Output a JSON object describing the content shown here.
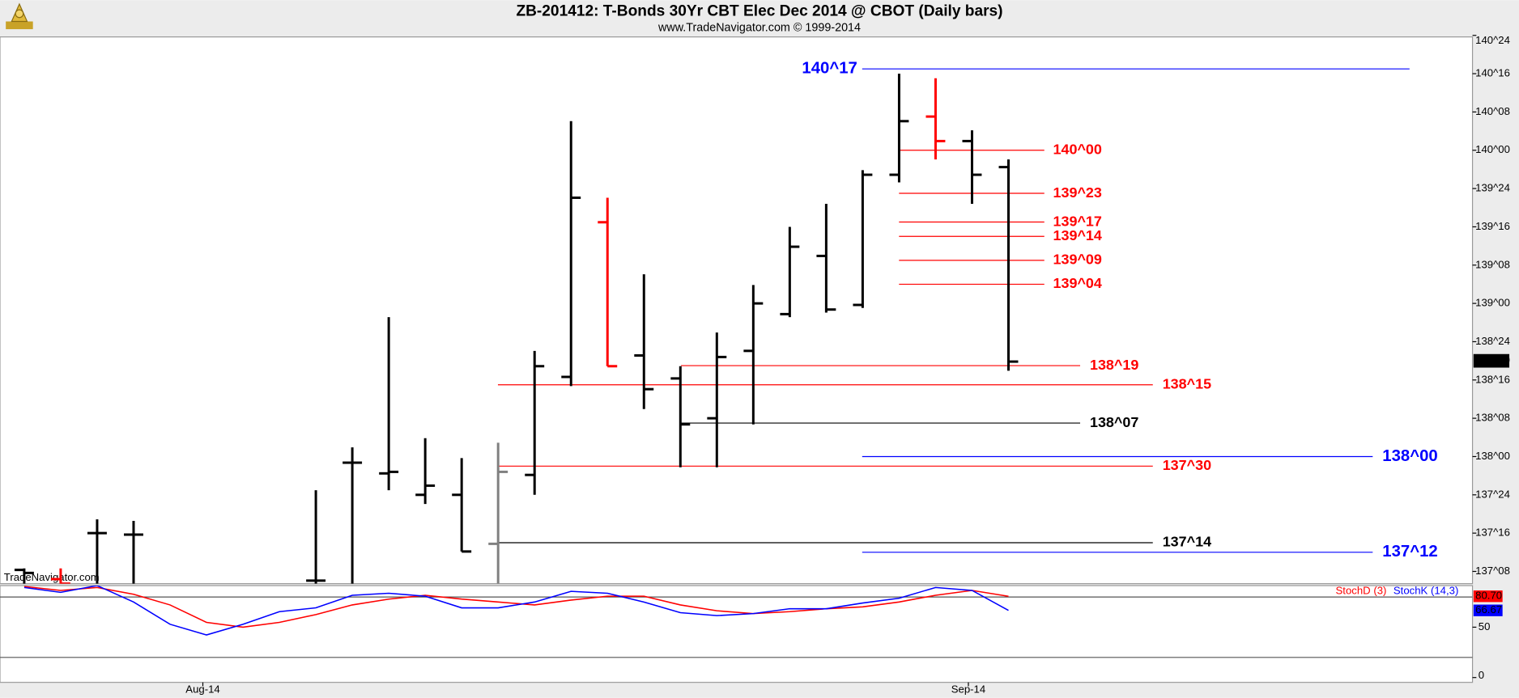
{
  "chart_data": [
    {
      "type": "ohlc",
      "title": "ZB-201412:  T-Bonds 30Yr CBT Elec Dec 2014 @ CBOT  (Daily bars)",
      "subtitle": "www.TradeNavigator.com © 1999-2014",
      "watermark": "TradeNavigator.com",
      "x": [
        0,
        1,
        2,
        3,
        8,
        9,
        10,
        11,
        12,
        13,
        14,
        15,
        16,
        17,
        18,
        19,
        20,
        21,
        22,
        23,
        24,
        25,
        26,
        27
      ],
      "open": [
        137.26,
        137.2,
        137.5,
        137.49,
        137.19,
        137.96,
        137.89,
        137.75,
        137.75,
        137.43,
        137.88,
        138.52,
        139.53,
        138.66,
        138.51,
        138.25,
        138.69,
        138.93,
        139.31,
        138.99,
        139.84,
        140.22,
        140.06,
        139.89
      ],
      "high": [
        137.27,
        137.27,
        137.59,
        137.58,
        137.78,
        138.06,
        138.91,
        138.12,
        137.99,
        138.09,
        138.69,
        140.19,
        139.69,
        139.19,
        138.59,
        138.81,
        139.12,
        139.5,
        139.65,
        139.87,
        140.5,
        140.47,
        140.13,
        139.94
      ],
      "low": [
        137.13,
        137.13,
        137.13,
        137.13,
        137.13,
        137.13,
        137.78,
        137.69,
        137.38,
        137.13,
        137.75,
        138.46,
        138.59,
        138.31,
        137.93,
        137.93,
        138.21,
        138.91,
        138.94,
        138.97,
        139.79,
        139.94,
        139.65,
        138.56
      ],
      "close": [
        137.24,
        137.17,
        137.5,
        137.49,
        137.19,
        137.96,
        137.9,
        137.81,
        137.38,
        137.9,
        138.59,
        139.69,
        138.59,
        138.44,
        138.21,
        138.65,
        139.0,
        139.37,
        138.96,
        139.84,
        140.19,
        140.06,
        139.84,
        138.62
      ],
      "bar_colors": [
        "#000000",
        "#ff0000",
        "#000000",
        "#000000",
        "#000000",
        "#000000",
        "#000000",
        "#000000",
        "#000000",
        "#808080",
        "#000000",
        "#000000",
        "#ff0000",
        "#000000",
        "#000000",
        "#000000",
        "#000000",
        "#000000",
        "#000000",
        "#000000",
        "#000000",
        "#ff0000",
        "#000000",
        "#000000"
      ],
      "ylim": [
        137.17,
        140.74
      ],
      "yticks": [
        {
          "value": 137.25,
          "label": "137^08"
        },
        {
          "value": 137.5,
          "label": "137^16"
        },
        {
          "value": 137.75,
          "label": "137^24"
        },
        {
          "value": 138,
          "label": "138^00"
        },
        {
          "value": 138.25,
          "label": "138^08"
        },
        {
          "value": 138.5,
          "label": "138^16"
        },
        {
          "value": 138.75,
          "label": "138^24"
        },
        {
          "value": 139,
          "label": "139^00"
        },
        {
          "value": 139.25,
          "label": "139^08"
        },
        {
          "value": 139.5,
          "label": "139^16"
        },
        {
          "value": 139.75,
          "label": "139^24"
        },
        {
          "value": 140,
          "label": "140^00"
        },
        {
          "value": 140.25,
          "label": "140^08"
        },
        {
          "value": 140.5,
          "label": "140^16"
        },
        {
          "value": 140.75,
          "label": "140^24"
        }
      ],
      "levels": [
        {
          "label": "140^17",
          "value": 140.53125,
          "color": "#0000ff"
        },
        {
          "label": "140^00",
          "value": 140,
          "color": "#ff0000"
        },
        {
          "label": "139^23",
          "value": 139.71875,
          "color": "#ff0000"
        },
        {
          "label": "139^17",
          "value": 139.53125,
          "color": "#ff0000"
        },
        {
          "label": "139^14",
          "value": 139.4375,
          "color": "#ff0000"
        },
        {
          "label": "139^09",
          "value": 139.28125,
          "color": "#ff0000"
        },
        {
          "label": "139^04",
          "value": 139.125,
          "color": "#ff0000"
        },
        {
          "label": "138^19",
          "value": 138.59375,
          "color": "#ff0000"
        },
        {
          "label": "138^15",
          "value": 138.46875,
          "color": "#ff0000"
        },
        {
          "label": "138^07",
          "value": 138.21875,
          "color": "#000000"
        },
        {
          "label": "138^00",
          "value": 138,
          "color": "#0000ff"
        },
        {
          "label": "137^30",
          "value": 137.9375,
          "color": "#ff0000"
        },
        {
          "label": "137^14",
          "value": 137.4375,
          "color": "#000000"
        },
        {
          "label": "137^12",
          "value": 137.375,
          "color": "#0000ff"
        }
      ],
      "last": {
        "value": 138.625,
        "label": "138^20"
      }
    },
    {
      "type": "line",
      "x": [
        0,
        1,
        2,
        3,
        4,
        5,
        6,
        7,
        8,
        9,
        10,
        11,
        12,
        13,
        14,
        15,
        16,
        17,
        18,
        19,
        20,
        21,
        22,
        23,
        24,
        25,
        26,
        27
      ],
      "series": [
        {
          "name": "StochD (3)",
          "color": "#ff0000",
          "last_label": "80.70",
          "values": [
            90.4,
            86.5,
            89.4,
            82.7,
            72.1,
            54.8,
            50,
            54.8,
            62.5,
            72.1,
            77.9,
            81.7,
            77.9,
            75,
            72.1,
            76.9,
            80.8,
            80.8,
            72.1,
            66.3,
            63.5,
            65.4,
            68.3,
            70.2,
            75,
            81.7,
            86.5,
            80.7
          ]
        },
        {
          "name": "StochK (14,3)",
          "color": "#0000ff",
          "last_label": "66.67",
          "values": [
            89.4,
            84.6,
            91.3,
            75,
            52.9,
            42.3,
            52.9,
            65.4,
            69.2,
            81.7,
            83.7,
            80.8,
            69.2,
            69.2,
            75,
            85.6,
            83.7,
            75,
            64.4,
            61.5,
            63.5,
            68.3,
            68.3,
            74,
            78.8,
            89.4,
            86.5,
            66.67
          ]
        }
      ],
      "ylim": [
        -4.8,
        91.3
      ],
      "yticks": [
        0,
        50
      ],
      "levels": [
        20,
        80
      ],
      "xticks": [
        {
          "value": 4.9,
          "label": "Aug-14"
        },
        {
          "value": 25.9,
          "label": "Sep-14"
        }
      ]
    }
  ]
}
